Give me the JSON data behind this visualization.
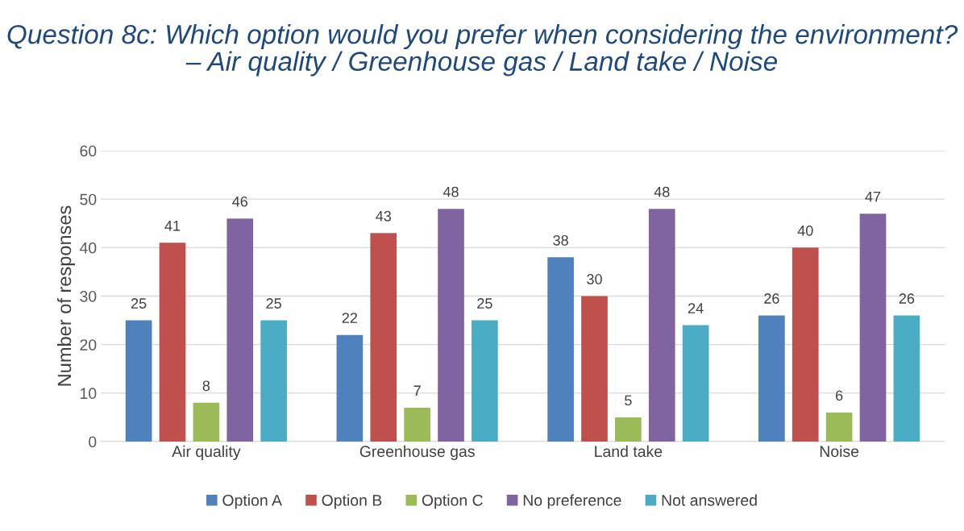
{
  "chart_data": {
    "type": "bar",
    "title": "Question 8c: Which option would you prefer when considering the environment? – Air quality / Greenhouse gas / Land take / Noise",
    "ylabel": "Number of responses",
    "categories": [
      "Air quality",
      "Greenhouse gas",
      "Land take",
      "Noise"
    ],
    "series": [
      {
        "name": "Option A",
        "color": "#4f81bd",
        "values": [
          25,
          22,
          38,
          26
        ]
      },
      {
        "name": "Option B",
        "color": "#c0504d",
        "values": [
          41,
          43,
          30,
          40
        ]
      },
      {
        "name": "Option C",
        "color": "#9bbb59",
        "values": [
          8,
          7,
          5,
          6
        ]
      },
      {
        "name": "No preference",
        "color": "#8064a2",
        "values": [
          46,
          48,
          48,
          47
        ]
      },
      {
        "name": "Not answered",
        "color": "#4bacc6",
        "values": [
          25,
          25,
          24,
          26
        ]
      }
    ],
    "ylim": [
      0,
      60
    ],
    "yticks": [
      0,
      10,
      20,
      30,
      40,
      50,
      60
    ],
    "grid": "y",
    "legend": "bottom",
    "data_labels": true
  }
}
